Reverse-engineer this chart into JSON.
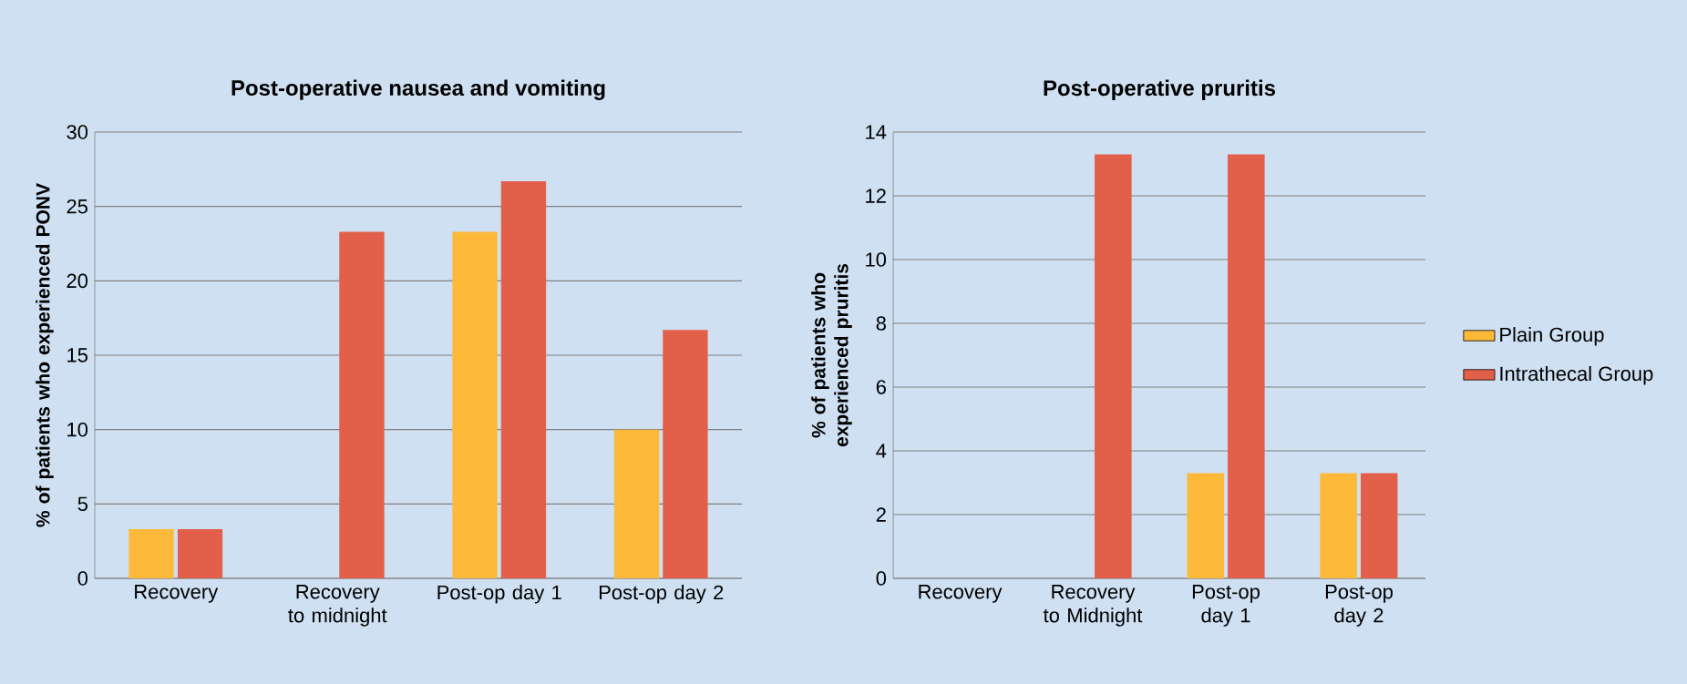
{
  "chart_data": [
    {
      "type": "bar",
      "title": "Post-operative nausea and vomiting",
      "ylabel": "% of patients who experienced PONV",
      "categories": [
        "Recovery",
        "Recovery to midnight",
        "Post-op day 1",
        "Post-op day 2"
      ],
      "series": [
        {
          "color": "#fdb93a",
          "values": [
            3.3,
            0,
            23.3,
            10
          ]
        },
        {
          "color": "#e2604a",
          "values": [
            3.3,
            23.3,
            26.7,
            16.7
          ]
        }
      ],
      "ylim": [
        0,
        30
      ],
      "yticks": [
        0,
        5,
        10,
        15,
        20,
        25,
        30
      ],
      "grid": "y"
    },
    {
      "type": "bar",
      "title": "Post-operative pruritis",
      "ylabel": "% of patients who experienced pruritis",
      "categories": [
        "Recovery",
        "Recovery to Midnight",
        "Post-op day 1",
        "Post-op day 2"
      ],
      "series": [
        {
          "name": "Plain Group",
          "color": "#fdb93a",
          "values": [
            0,
            0,
            3.3,
            3.3
          ]
        },
        {
          "name": "Intrathecal Group",
          "color": "#e2604a",
          "values": [
            0,
            13.3,
            13.3,
            3.3
          ]
        }
      ],
      "ylim": [
        0,
        14
      ],
      "yticks": [
        0,
        2,
        4,
        6,
        8,
        10,
        12,
        14
      ],
      "grid": "y",
      "legend": "right"
    }
  ]
}
